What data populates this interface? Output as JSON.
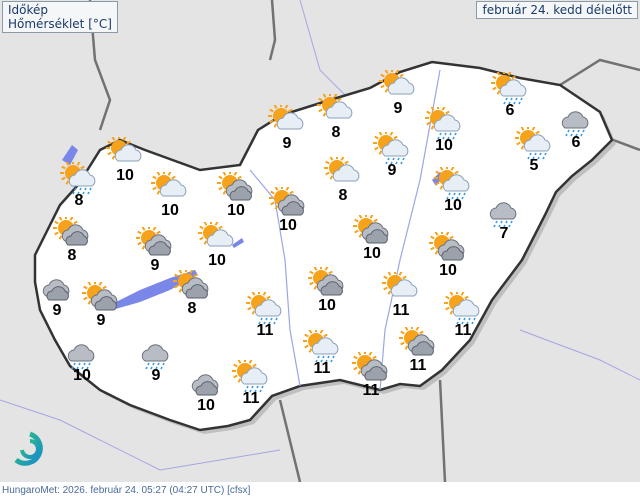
{
  "header": {
    "title": "Időkép",
    "subtitle": "Hőmérséklet  [°C]",
    "date": "február 24. kedd délelőtt"
  },
  "footer": {
    "text": "HungaroMet: 2026. február 24. 05:27 (04:27  UTC)  [cfsx]"
  },
  "colors": {
    "land": "#ffffff",
    "background": "#e4e4e4",
    "border": "#333333",
    "water": "#7a86e8",
    "sun": "#f7a21b",
    "rain": "#3a9be0"
  },
  "stations": [
    {
      "icon": "sun-cloud",
      "temp": "9"
    },
    {
      "icon": "sun-cloud-rain",
      "temp": "6"
    },
    {
      "icon": "cloud-rain",
      "temp": "6"
    },
    {
      "icon": "sun-cloud-rain",
      "temp": "10"
    },
    {
      "icon": "sun-cloud-rain",
      "temp": "9"
    },
    {
      "icon": "sun-cloud-rain",
      "temp": "5"
    },
    {
      "icon": "sun-cloud",
      "temp": "9"
    },
    {
      "icon": "sun-cloud",
      "temp": "8"
    },
    {
      "icon": "sun-cloud",
      "temp": "10"
    },
    {
      "icon": "sun-cloud-rain",
      "temp": "8"
    },
    {
      "icon": "sun-cloud",
      "temp": "10"
    },
    {
      "icon": "sun-cloud-dark",
      "temp": "10"
    },
    {
      "icon": "sun-cloud",
      "temp": "8"
    },
    {
      "icon": "sun-cloud-rain",
      "temp": "10"
    },
    {
      "icon": "cloud-rain",
      "temp": "7"
    },
    {
      "icon": "sun-cloud-dark",
      "temp": "10"
    },
    {
      "icon": "sun-cloud-dark",
      "temp": "8"
    },
    {
      "icon": "sun-cloud-dark",
      "temp": "9"
    },
    {
      "icon": "sun-cloud",
      "temp": "10"
    },
    {
      "icon": "sun-cloud-dark",
      "temp": "10"
    },
    {
      "icon": "sun-cloud-dark",
      "temp": "10"
    },
    {
      "icon": "cloud-dark",
      "temp": "9"
    },
    {
      "icon": "sun-cloud-dark",
      "temp": "9"
    },
    {
      "icon": "sun-cloud-dark",
      "temp": "8"
    },
    {
      "icon": "sun-cloud-rain",
      "temp": "11"
    },
    {
      "icon": "sun-cloud-dark",
      "temp": "10"
    },
    {
      "icon": "sun-cloud",
      "temp": "11"
    },
    {
      "icon": "sun-cloud-rain",
      "temp": "11"
    },
    {
      "icon": "cloud-rain",
      "temp": "10"
    },
    {
      "icon": "cloud-rain",
      "temp": "9"
    },
    {
      "icon": "sun-cloud-rain",
      "temp": "11"
    },
    {
      "icon": "sun-cloud-dark",
      "temp": "11"
    },
    {
      "icon": "cloud-dark",
      "temp": "10"
    },
    {
      "icon": "sun-cloud-rain",
      "temp": "11"
    },
    {
      "icon": "sun-cloud-dark",
      "temp": "11"
    }
  ]
}
